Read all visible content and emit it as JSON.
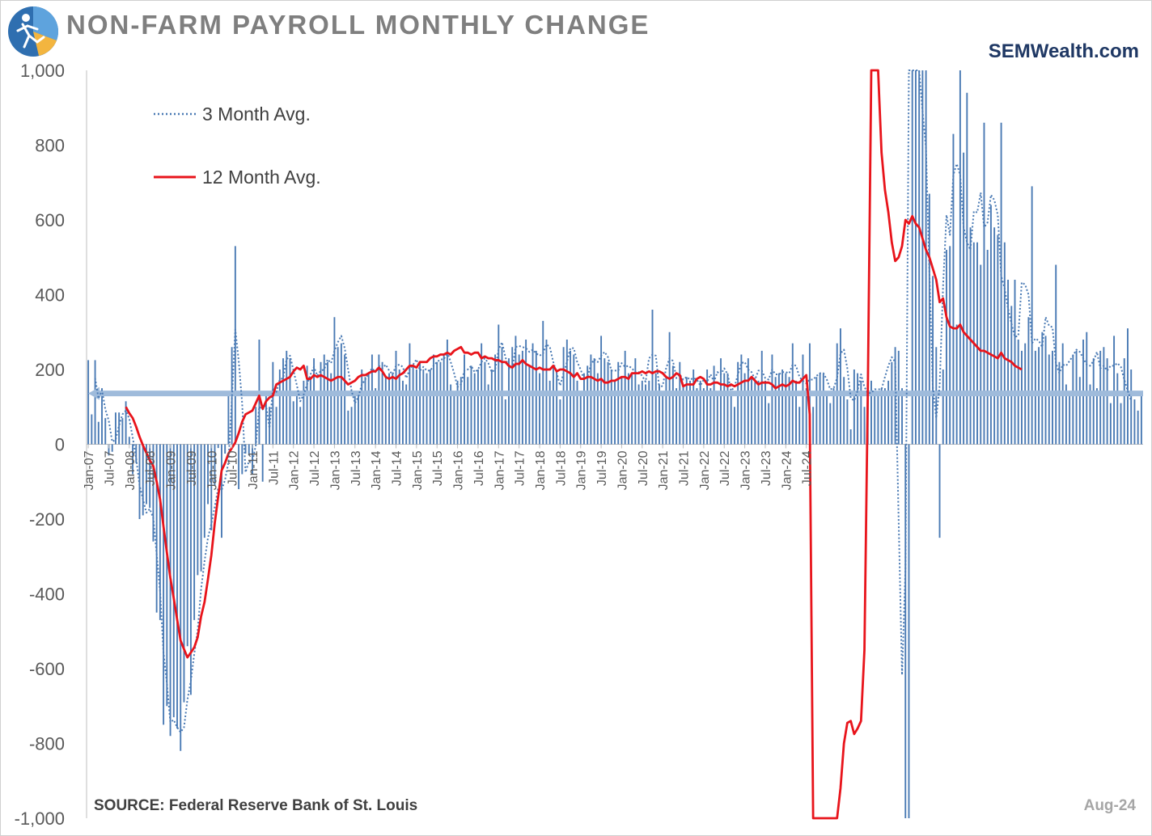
{
  "header": {
    "title": "NON-FARM PAYROLL MONTHLY CHANGE",
    "brand": "SEMWealth.com"
  },
  "footer": {
    "source": "SOURCE:  Federal Reserve Bank of St. Louis",
    "date": "Aug-24"
  },
  "colors": {
    "bars": "#4a7ab4",
    "avg3": "#4a7ab4",
    "avg12": "#e8141b",
    "reference_line": "#9fbbdb",
    "axis_text": "#595959",
    "title": "#7f7f7f",
    "brand": "#1f3864"
  },
  "chart_data": {
    "type": "bar",
    "title": "NON-FARM PAYROLL MONTHLY CHANGE",
    "xlabel": "",
    "ylabel": "",
    "ylim": [
      -1000,
      1000
    ],
    "yticks": [
      1000,
      800,
      600,
      400,
      200,
      0,
      -200,
      -400,
      -600,
      -800,
      -1000
    ],
    "ytick_labels": [
      "1,000",
      "800",
      "600",
      "400",
      "200",
      "0",
      "-200",
      "-400",
      "-600",
      "-800",
      "-1,000"
    ],
    "xtick_labels": [
      "Jan-07",
      "Jul-07",
      "Jan-08",
      "Jul-08",
      "Jan-09",
      "Jul-09",
      "Jan-10",
      "Jul-10",
      "Jan-11",
      "Jul-11",
      "Jan-12",
      "Jul-12",
      "Jan-13",
      "Jul-13",
      "Jan-14",
      "Jul-14",
      "Jan-15",
      "Jul-15",
      "Jan-16",
      "Jul-16",
      "Jan-17",
      "Jul-17",
      "Jan-18",
      "Jul-18",
      "Jan-19",
      "Jul-19",
      "Jan-20",
      "Jul-20",
      "Jan-21",
      "Jul-21",
      "Jan-22",
      "Jul-22",
      "Jan-23",
      "Jul-23",
      "Jan-24",
      "Jul-24"
    ],
    "start": "Jan-07",
    "reference_value": 136,
    "legend": [
      "3 Month Avg.",
      "12 Month Avg."
    ],
    "series": [
      {
        "name": "Monthly Change",
        "kind": "bar",
        "values": [
          225,
          80,
          225,
          60,
          150,
          70,
          -30,
          -20,
          85,
          85,
          70,
          115,
          20,
          -80,
          -50,
          -200,
          -190,
          -160,
          -170,
          -260,
          -450,
          -470,
          -750,
          -700,
          -780,
          -730,
          -760,
          -820,
          -690,
          -540,
          -670,
          -470,
          -350,
          -340,
          -250,
          -160,
          -230,
          -110,
          -10,
          -250,
          -25,
          130,
          260,
          530,
          -120,
          -80,
          -25,
          -30,
          -80,
          100,
          280,
          -100,
          130,
          100,
          220,
          100,
          200,
          230,
          250,
          230,
          115,
          130,
          100,
          170,
          210,
          180,
          230,
          140,
          220,
          240,
          220,
          190,
          340,
          260,
          270,
          240,
          90,
          100,
          140,
          140,
          200,
          180,
          190,
          240,
          150,
          240,
          220,
          180,
          190,
          190,
          250,
          200,
          170,
          160,
          270,
          210,
          200,
          220,
          200,
          190,
          200,
          240,
          220,
          220,
          240,
          280,
          160,
          130,
          170,
          180,
          240,
          180,
          210,
          190,
          200,
          270,
          220,
          160,
          200,
          240,
          320,
          260,
          120,
          230,
          260,
          290,
          240,
          250,
          280,
          210,
          270,
          250,
          190,
          330,
          280,
          170,
          210,
          190,
          120,
          260,
          280,
          250,
          240,
          170,
          140,
          190,
          210,
          240,
          230,
          190,
          290,
          230,
          220,
          200,
          170,
          220,
          180,
          250,
          190,
          190,
          230,
          160,
          170,
          160,
          170,
          360,
          190,
          160,
          130,
          180,
          300,
          210,
          150,
          220,
          160,
          180,
          170,
          200,
          150,
          170,
          150,
          200,
          150,
          210,
          140,
          230,
          190,
          190,
          140,
          100,
          220,
          240,
          190,
          230,
          180,
          170,
          170,
          250,
          170,
          110,
          240,
          180,
          190,
          200,
          190,
          180,
          270,
          170,
          100,
          240,
          150,
          270,
          100,
          180,
          190,
          190,
          140,
          110,
          150,
          270,
          310,
          180,
          120,
          40,
          200,
          190,
          170,
          100,
          140,
          170,
          140,
          130,
          150,
          150,
          170,
          220,
          260,
          250,
          150,
          -1000,
          -1000,
          1000,
          1000,
          1000,
          1000,
          1000,
          670,
          450,
          260,
          -250,
          200,
          520,
          530,
          830,
          320,
          1000,
          780,
          940,
          580,
          540,
          540,
          480,
          860,
          520,
          640,
          580,
          560,
          860,
          540,
          440,
          370,
          440,
          280,
          250,
          270,
          340,
          690,
          250,
          260,
          300,
          290,
          240,
          250,
          480,
          220,
          270,
          160,
          140,
          240,
          250,
          180,
          280,
          300,
          160,
          230,
          150,
          250,
          260,
          230,
          110,
          290,
          190,
          110,
          230,
          310,
          200,
          120,
          90,
          140
        ]
      },
      {
        "name": "3 Month Avg.",
        "kind": "line",
        "style": "dotted",
        "values": [
          null,
          null,
          177,
          122,
          145,
          93,
          63,
          7,
          12,
          50,
          80,
          90,
          68,
          18,
          -37,
          -110,
          -147,
          -183,
          -173,
          -197,
          -293,
          -393,
          -557,
          -640,
          -743,
          -737,
          -757,
          -770,
          -757,
          -683,
          -633,
          -560,
          -497,
          -387,
          -313,
          -250,
          -213,
          -167,
          -117,
          -123,
          -95,
          -48,
          122,
          307,
          223,
          110,
          -75,
          -45,
          -45,
          -3,
          100,
          93,
          103,
          43,
          150,
          140,
          173,
          177,
          227,
          237,
          198,
          158,
          115,
          133,
          160,
          187,
          207,
          183,
          197,
          200,
          227,
          217,
          250,
          273,
          290,
          257,
          200,
          143,
          110,
          127,
          160,
          173,
          190,
          203,
          193,
          210,
          203,
          213,
          197,
          187,
          210,
          213,
          207,
          177,
          200,
          213,
          227,
          197,
          207,
          197,
          197,
          210,
          220,
          227,
          227,
          247,
          220,
          190,
          153,
          160,
          197,
          200,
          210,
          193,
          200,
          220,
          230,
          217,
          193,
          200,
          253,
          273,
          233,
          203,
          203,
          260,
          263,
          260,
          257,
          247,
          253,
          243,
          237,
          243,
          267,
          260,
          220,
          190,
          157,
          190,
          220,
          257,
          257,
          220,
          200,
          173,
          180,
          213,
          227,
          220,
          237,
          247,
          233,
          197,
          197,
          197,
          217,
          207,
          210,
          203,
          193,
          193,
          183,
          167,
          230,
          240,
          237,
          150,
          157,
          203,
          230,
          223,
          177,
          187,
          173,
          180,
          173,
          177,
          173,
          157,
          173,
          167,
          187,
          167,
          193,
          187,
          203,
          187,
          143,
          153,
          187,
          217,
          220,
          200,
          193,
          173,
          197,
          197,
          177,
          173,
          200,
          187,
          187,
          193,
          193,
          190,
          213,
          210,
          180,
          170,
          163,
          173,
          173,
          183,
          190,
          190,
          173,
          147,
          150,
          177,
          243,
          253,
          203,
          123,
          117,
          143,
          187,
          153,
          137,
          137,
          147,
          147,
          147,
          180,
          210,
          233,
          220,
          -200,
          -617,
          -333,
          1000,
          1000,
          1000,
          1000,
          890,
          793,
          460,
          153,
          70,
          157,
          423,
          613,
          560,
          720,
          750,
          720,
          580,
          540,
          520,
          623,
          620,
          673,
          580,
          593,
          667,
          653,
          613,
          450,
          417,
          363,
          323,
          287,
          290,
          433,
          427,
          400,
          270,
          283,
          277,
          260,
          340,
          317,
          313,
          217,
          190,
          213,
          210,
          223,
          237,
          253,
          247,
          230,
          213,
          210,
          223,
          247,
          203,
          210,
          197,
          210,
          210,
          217,
          207,
          173,
          143,
          117
        ]
      },
      {
        "name": "12 Month Avg.",
        "kind": "line",
        "style": "solid",
        "values": [
          null,
          null,
          null,
          null,
          null,
          null,
          null,
          null,
          null,
          null,
          null,
          100,
          83,
          70,
          47,
          20,
          -3,
          -23,
          -43,
          -58,
          -100,
          -147,
          -220,
          -290,
          -357,
          -412,
          -469,
          -525,
          -548,
          -570,
          -557,
          -543,
          -516,
          -460,
          -422,
          -361,
          -296,
          -210,
          -140,
          -70,
          -50,
          -25,
          -10,
          5,
          30,
          60,
          80,
          85,
          90,
          110,
          130,
          95,
          115,
          125,
          130,
          160,
          165,
          170,
          175,
          180,
          195,
          205,
          200,
          210,
          175,
          175,
          185,
          180,
          185,
          180,
          175,
          170,
          175,
          180,
          180,
          170,
          160,
          165,
          170,
          180,
          185,
          185,
          190,
          195,
          195,
          205,
          195,
          180,
          175,
          180,
          175,
          185,
          190,
          200,
          210,
          210,
          205,
          220,
          220,
          220,
          230,
          235,
          235,
          240,
          240,
          245,
          240,
          250,
          255,
          260,
          245,
          245,
          240,
          245,
          245,
          230,
          235,
          230,
          230,
          225,
          225,
          220,
          220,
          210,
          205,
          215,
          215,
          225,
          215,
          210,
          205,
          200,
          205,
          200,
          200,
          200,
          210,
          195,
          200,
          200,
          195,
          190,
          180,
          190,
          175,
          175,
          180,
          180,
          175,
          170,
          175,
          165,
          165,
          170,
          170,
          175,
          180,
          180,
          175,
          190,
          190,
          190,
          195,
          190,
          195,
          190,
          195,
          195,
          190,
          180,
          175,
          180,
          190,
          185,
          155,
          160,
          160,
          160,
          175,
          180,
          175,
          160,
          160,
          165,
          165,
          160,
          160,
          155,
          160,
          155,
          160,
          165,
          170,
          170,
          180,
          170,
          160,
          165,
          165,
          165,
          160,
          150,
          155,
          160,
          155,
          160,
          170,
          165,
          165,
          175,
          185,
          80,
          -1000,
          -1000,
          -1000,
          -1000,
          -1000,
          -1000,
          -1000,
          -1000,
          -920,
          -800,
          -745,
          -740,
          -775,
          -760,
          -740,
          -550,
          150,
          1000,
          1000,
          1000,
          780,
          680,
          620,
          540,
          490,
          500,
          530,
          600,
          590,
          610,
          590,
          580,
          550,
          520,
          500,
          470,
          440,
          380,
          390,
          340,
          315,
          310,
          310,
          320,
          300,
          290,
          280,
          270,
          260,
          250,
          250,
          245,
          240,
          235,
          230,
          245,
          230,
          225,
          220,
          210,
          205,
          200
        ]
      }
    ]
  }
}
